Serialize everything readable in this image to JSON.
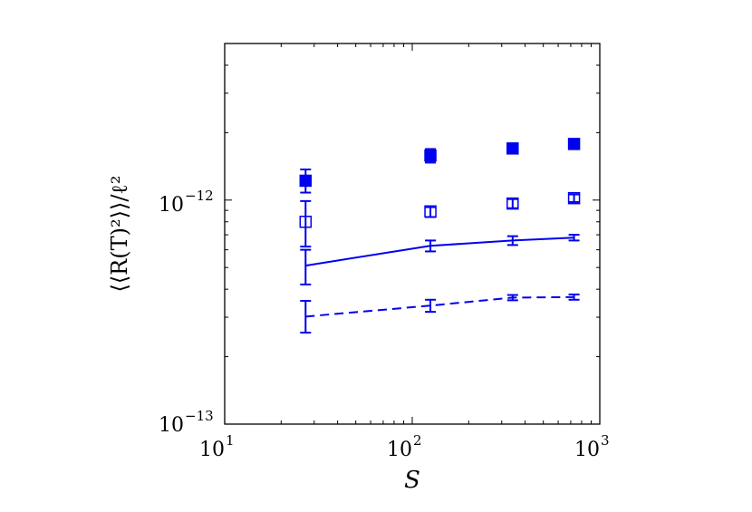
{
  "chart_data": {
    "type": "scatter",
    "title": "",
    "xlabel": "S",
    "ylabel": "⟨⟨R(T)²⟩⟩/ℓ²",
    "xscale": "log",
    "yscale": "log",
    "xlim": [
      10,
      1000
    ],
    "ylim": [
      1e-13,
      5e-12
    ],
    "x_ticks": [
      {
        "base": "10",
        "exp": "1",
        "value": 10
      },
      {
        "base": "10",
        "exp": "2",
        "value": 100
      },
      {
        "base": "10",
        "exp": "3",
        "value": 1000
      }
    ],
    "y_ticks": [
      {
        "base": "10",
        "exp": "−13",
        "value": 1e-13
      },
      {
        "base": "10",
        "exp": "−12",
        "value": 1e-12
      }
    ],
    "color": "#0000ee",
    "series": [
      {
        "name": "filled squares",
        "style": "filled-square",
        "x": [
          27,
          125,
          343,
          729
        ],
        "y": [
          1.22e-12,
          1.58e-12,
          1.7e-12,
          1.78e-12
        ],
        "err_low": [
          1.08e-12,
          1.47e-12,
          1.63e-12,
          1.71e-12
        ],
        "err_high": [
          1.37e-12,
          1.69e-12,
          1.77e-12,
          1.85e-12
        ]
      },
      {
        "name": "open squares",
        "style": "open-square",
        "x": [
          27,
          125,
          343,
          729
        ],
        "y": [
          8e-13,
          8.9e-13,
          9.65e-13,
          1.02e-12
        ],
        "err_low": [
          6.2e-13,
          8.4e-13,
          9.2e-13,
          9.8e-13
        ],
        "err_high": [
          9.9e-13,
          9.3e-13,
          1.01e-12,
          1.06e-12
        ]
      },
      {
        "name": "solid line",
        "style": "solid",
        "x": [
          27,
          125,
          343,
          729
        ],
        "y": [
          5.1e-13,
          6.25e-13,
          6.6e-13,
          6.8e-13
        ],
        "err_low": [
          4.2e-13,
          5.9e-13,
          6.3e-13,
          6.6e-13
        ],
        "err_high": [
          6e-13,
          6.6e-13,
          6.9e-13,
          7e-13
        ]
      },
      {
        "name": "dashed line",
        "style": "dashed",
        "x": [
          27,
          125,
          343,
          729
        ],
        "y": [
          3.02e-13,
          3.38e-13,
          3.67e-13,
          3.69e-13
        ],
        "err_low": [
          2.56e-13,
          3.17e-13,
          3.57e-13,
          3.59e-13
        ],
        "err_high": [
          3.55e-13,
          3.59e-13,
          3.77e-13,
          3.79e-13
        ]
      }
    ]
  }
}
